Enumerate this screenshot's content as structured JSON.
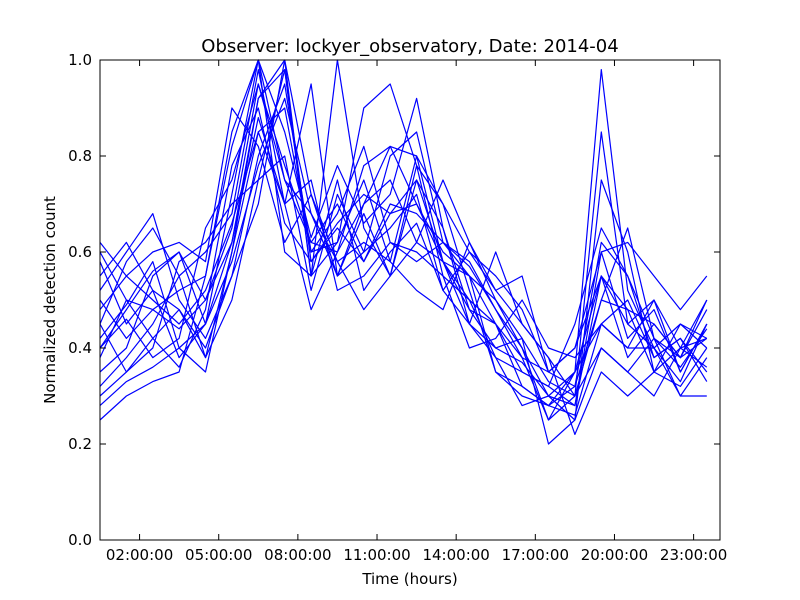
{
  "chart_data": {
    "type": "line",
    "title": "Observer: lockyer_observatory, Date: 2014-04",
    "xlabel": "Time (hours)",
    "ylabel": "Normalized detection count",
    "x_hours": [
      0.5,
      1.5,
      2.5,
      3.5,
      4.5,
      5.5,
      6.5,
      7.5,
      8.5,
      9.5,
      10.5,
      11.5,
      12.5,
      13.5,
      14.5,
      15.5,
      16.5,
      17.5,
      18.5,
      19.5,
      20.5,
      21.5,
      22.5,
      23.5
    ],
    "xlim_hours": [
      0.5,
      24
    ],
    "x_ticks": [
      {
        "hours": 2,
        "label": "02:00:00"
      },
      {
        "hours": 5,
        "label": "05:00:00"
      },
      {
        "hours": 8,
        "label": "08:00:00"
      },
      {
        "hours": 11,
        "label": "11:00:00"
      },
      {
        "hours": 14,
        "label": "14:00:00"
      },
      {
        "hours": 17,
        "label": "17:00:00"
      },
      {
        "hours": 20,
        "label": "20:00:00"
      },
      {
        "hours": 23,
        "label": "23:00:00"
      }
    ],
    "y_ticks": [
      "0.0",
      "0.2",
      "0.4",
      "0.6",
      "0.8",
      "1.0"
    ],
    "ylim": [
      0,
      1
    ],
    "grid": false,
    "legend": "none",
    "line_color": "#0000ff",
    "series": [
      {
        "values": [
          0.42,
          0.49,
          0.58,
          0.4,
          0.35,
          0.6,
          0.92,
          1.0,
          0.72,
          0.55,
          0.7,
          0.82,
          0.8,
          0.58,
          0.55,
          0.45,
          0.32,
          0.28,
          0.35,
          0.98,
          0.52,
          0.4,
          0.33,
          0.45
        ]
      },
      {
        "values": [
          0.55,
          0.62,
          0.52,
          0.38,
          0.45,
          0.72,
          1.0,
          0.85,
          0.63,
          0.78,
          0.66,
          0.72,
          0.92,
          0.65,
          0.48,
          0.4,
          0.37,
          0.3,
          0.28,
          0.55,
          0.48,
          0.45,
          0.38,
          0.42
        ]
      },
      {
        "values": [
          0.3,
          0.35,
          0.42,
          0.48,
          0.4,
          0.55,
          0.8,
          0.95,
          0.6,
          0.62,
          0.9,
          0.95,
          0.78,
          0.7,
          0.6,
          0.55,
          0.48,
          0.35,
          0.4,
          0.6,
          0.62,
          0.55,
          0.48,
          0.55
        ]
      },
      {
        "values": [
          0.45,
          0.58,
          0.65,
          0.55,
          0.38,
          0.5,
          0.75,
          0.98,
          0.55,
          1.0,
          0.65,
          0.55,
          0.62,
          0.75,
          0.62,
          0.5,
          0.42,
          0.2,
          0.25,
          0.4,
          0.35,
          0.3,
          0.4,
          0.5
        ]
      },
      {
        "values": [
          0.35,
          0.4,
          0.55,
          0.6,
          0.45,
          0.62,
          0.88,
          0.7,
          0.48,
          0.6,
          0.78,
          0.82,
          0.7,
          0.58,
          0.5,
          0.38,
          0.35,
          0.32,
          0.45,
          0.65,
          0.55,
          0.38,
          0.42,
          0.35
        ]
      },
      {
        "values": [
          0.6,
          0.5,
          0.48,
          0.44,
          0.5,
          0.65,
          0.95,
          0.75,
          0.68,
          0.55,
          0.6,
          0.8,
          0.85,
          0.62,
          0.57,
          0.48,
          0.4,
          0.25,
          0.3,
          0.85,
          0.45,
          0.4,
          0.3,
          0.3
        ]
      },
      {
        "values": [
          0.25,
          0.3,
          0.33,
          0.35,
          0.55,
          0.85,
          1.0,
          0.6,
          0.55,
          0.75,
          0.52,
          0.6,
          0.66,
          0.52,
          0.45,
          0.6,
          0.45,
          0.38,
          0.22,
          0.35,
          0.3,
          0.35,
          0.45,
          0.4
        ]
      },
      {
        "values": [
          0.48,
          0.55,
          0.6,
          0.62,
          0.58,
          0.9,
          0.82,
          0.62,
          0.72,
          0.58,
          0.48,
          0.55,
          0.78,
          0.55,
          0.4,
          0.42,
          0.5,
          0.4,
          0.38,
          0.45,
          0.4,
          0.5,
          0.35,
          0.45
        ]
      },
      {
        "values": [
          0.4,
          0.46,
          0.38,
          0.42,
          0.65,
          0.75,
          0.95,
          0.78,
          0.62,
          0.7,
          0.58,
          0.68,
          0.7,
          0.6,
          0.55,
          0.35,
          0.3,
          0.28,
          0.32,
          0.5,
          0.65,
          0.42,
          0.3,
          0.38
        ]
      },
      {
        "values": [
          0.52,
          0.6,
          0.68,
          0.5,
          0.42,
          0.55,
          0.7,
          1.0,
          0.55,
          0.62,
          0.75,
          0.58,
          0.52,
          0.48,
          0.62,
          0.52,
          0.55,
          0.35,
          0.4,
          0.55,
          0.38,
          0.45,
          0.38,
          0.5
        ]
      },
      {
        "values": [
          0.32,
          0.38,
          0.45,
          0.55,
          0.6,
          0.68,
          0.98,
          0.7,
          0.95,
          0.55,
          0.68,
          0.55,
          0.75,
          0.65,
          0.45,
          0.38,
          0.28,
          0.3,
          0.25,
          0.75,
          0.6,
          0.35,
          0.4,
          0.42
        ]
      },
      {
        "values": [
          0.58,
          0.45,
          0.52,
          0.48,
          0.38,
          0.6,
          0.85,
          0.9,
          0.6,
          0.68,
          0.82,
          0.62,
          0.6,
          0.55,
          0.5,
          0.45,
          0.35,
          0.32,
          0.28,
          0.6,
          0.42,
          0.48,
          0.35,
          0.45
        ]
      },
      {
        "values": [
          0.38,
          0.5,
          0.42,
          0.36,
          0.48,
          0.78,
          0.9,
          0.66,
          0.58,
          0.65,
          0.58,
          0.7,
          0.68,
          0.62,
          0.58,
          0.48,
          0.38,
          0.25,
          0.35,
          0.45,
          0.5,
          0.38,
          0.42,
          0.33
        ]
      },
      {
        "values": [
          0.45,
          0.35,
          0.4,
          0.58,
          0.62,
          0.7,
          0.75,
          0.8,
          0.52,
          0.72,
          0.6,
          0.65,
          0.72,
          0.52,
          0.6,
          0.52,
          0.45,
          0.38,
          0.3,
          0.4,
          0.35,
          0.42,
          0.38,
          0.48
        ]
      },
      {
        "values": [
          0.5,
          0.42,
          0.48,
          0.52,
          0.55,
          0.82,
          1.0,
          0.75,
          0.62,
          0.6,
          0.7,
          0.75,
          0.62,
          0.58,
          0.45,
          0.4,
          0.42,
          0.33,
          0.3,
          0.5,
          0.48,
          0.35,
          0.32,
          0.4
        ]
      },
      {
        "values": [
          0.28,
          0.33,
          0.36,
          0.4,
          0.45,
          0.58,
          0.78,
          0.92,
          0.68,
          0.58,
          0.62,
          0.58,
          0.8,
          0.7,
          0.52,
          0.35,
          0.32,
          0.28,
          0.26,
          0.45,
          0.4,
          0.4,
          0.45,
          0.42
        ]
      },
      {
        "values": [
          0.62,
          0.55,
          0.5,
          0.45,
          0.52,
          0.66,
          0.85,
          0.7,
          0.75,
          0.52,
          0.55,
          0.62,
          0.58,
          0.62,
          0.55,
          0.5,
          0.4,
          0.3,
          0.35,
          0.55,
          0.45,
          0.5,
          0.4,
          0.36
        ]
      },
      {
        "values": [
          0.4,
          0.48,
          0.56,
          0.6,
          0.5,
          0.62,
          0.92,
          0.98,
          0.58,
          0.66,
          0.72,
          0.68,
          0.75,
          0.58,
          0.48,
          0.45,
          0.38,
          0.35,
          0.32,
          0.62,
          0.55,
          0.42,
          0.36,
          0.44
        ]
      }
    ]
  }
}
